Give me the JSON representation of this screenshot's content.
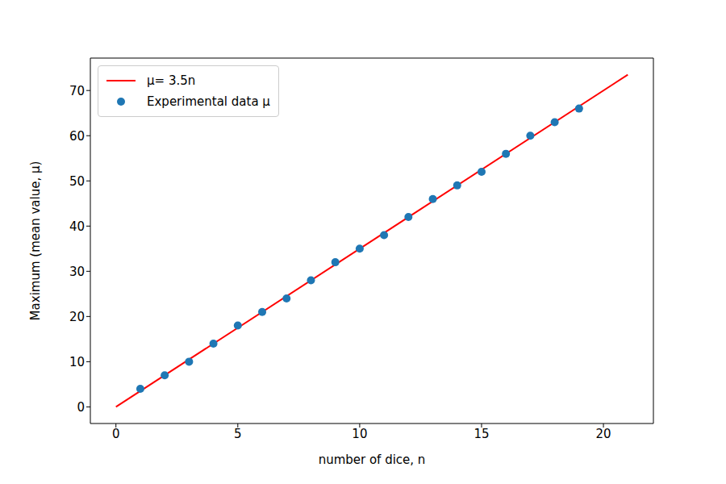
{
  "chart_data": {
    "type": "scatter",
    "xlabel": "number of dice, n",
    "ylabel": "Maximum (mean value, μ)",
    "xlim": [
      -1.05,
      22.05
    ],
    "ylim": [
      -3.675,
      77.175
    ],
    "xticks": [
      0,
      5,
      10,
      15,
      20
    ],
    "yticks": [
      0,
      10,
      20,
      30,
      40,
      50,
      60,
      70
    ],
    "legend": "upper left",
    "series": [
      {
        "name": "μ= 3.5n",
        "type": "line",
        "color": "#ff0000",
        "x": [
          0,
          21
        ],
        "values": [
          0,
          73.5
        ]
      },
      {
        "name": "Experimental data μ",
        "type": "scatter",
        "marker": "circle",
        "color": "#1f77b4",
        "x": [
          1,
          2,
          3,
          4,
          5,
          6,
          7,
          8,
          9,
          10,
          11,
          12,
          13,
          14,
          15,
          16,
          17,
          18,
          19
        ],
        "values": [
          4,
          7,
          10,
          14,
          18,
          21,
          24,
          28,
          32,
          35,
          38,
          42,
          46,
          49,
          52,
          56,
          60,
          63,
          66
        ]
      }
    ]
  }
}
